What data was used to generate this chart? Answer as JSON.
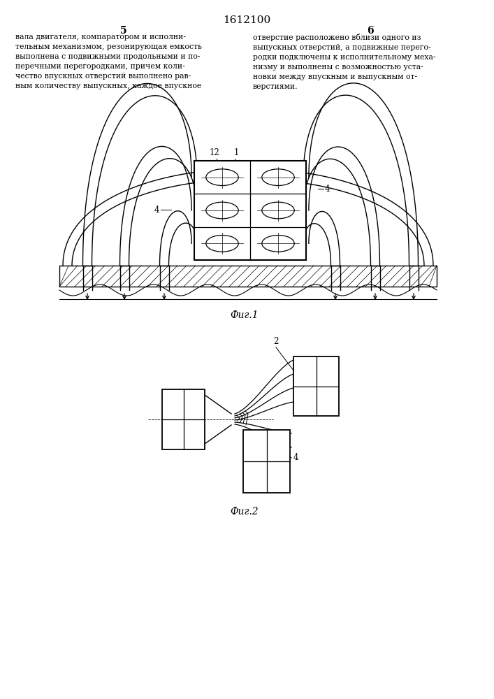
{
  "title": "1612100",
  "page_col_left": "5",
  "page_col_right": "6",
  "text_left": "вала двигателя, компаратором и исполни-\nтельным механизмом, резонирующая емкость\nвыполнена с подвижными продольными и по-\nперечными перегородками, причем коли-\nчество впускных отверстий выполнено рав-\nным количеству выпускных, каждое впускное",
  "text_right": "отверстие расположено вблизи одного из\nвыпускных отверстий, а подвижные перего-\nродки подключены к исполнительному меха-\nнизму и выполнены с возможностью уста-\nновки между впускным и выпускным от-\nверстиями.",
  "fig1_caption": "Фиг.1",
  "fig2_caption": "Фиг.2",
  "label_12": "12",
  "label_1": "1",
  "label_4_right": "4",
  "label_4_left": "4",
  "label_2": "2",
  "label_4_fig2": "4",
  "bg_color": "#ffffff",
  "line_color": "#000000"
}
